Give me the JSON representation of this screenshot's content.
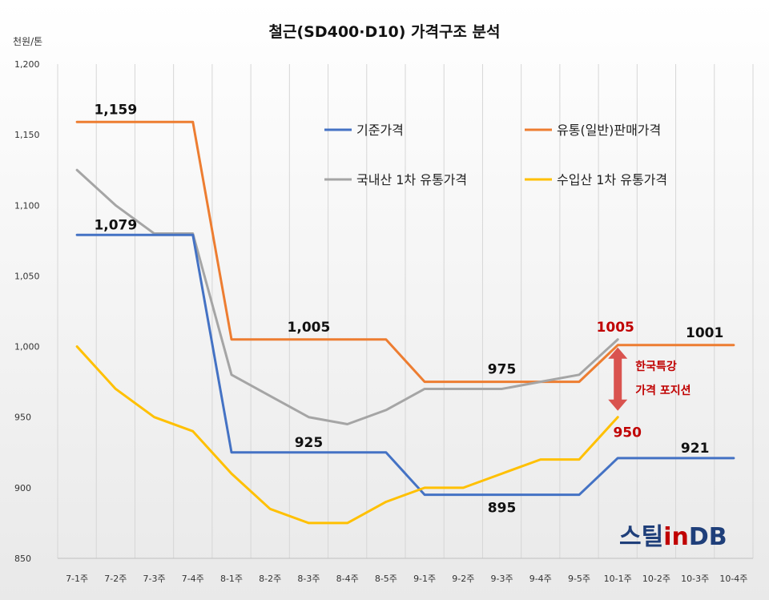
{
  "chart_data": {
    "type": "line",
    "title": "철근(SD400·D10) 가격구조 분석",
    "ylabel": "천원/톤",
    "ylim": [
      850,
      1200
    ],
    "yticks": [
      "850",
      "900",
      "950",
      "1,000",
      "1,050",
      "1,100",
      "1,150",
      "1,200"
    ],
    "yticks_values": [
      850,
      900,
      950,
      1000,
      1050,
      1100,
      1150,
      1200
    ],
    "grid": "vertical",
    "categories": [
      "7-1주",
      "7-2주",
      "7-3주",
      "7-4주",
      "8-1주",
      "8-2주",
      "8-3주",
      "8-4주",
      "8-5주",
      "9-1주",
      "9-2주",
      "9-3주",
      "9-4주",
      "9-5주",
      "10-1주",
      "10-2주",
      "10-3주",
      "10-4주"
    ],
    "series": [
      {
        "name": "유통(일반)판매가격",
        "color": "#ED7D31",
        "values": [
          1159,
          1159,
          1159,
          1159,
          1005,
          1005,
          1005,
          1005,
          1005,
          975,
          975,
          975,
          975,
          975,
          1001,
          1001,
          1001,
          1001
        ]
      },
      {
        "name": "국내산 1차 유통가격",
        "color": "#A5A5A5",
        "values": [
          1125,
          1100,
          1080,
          1080,
          980,
          965,
          950,
          945,
          955,
          970,
          970,
          970,
          975,
          980,
          1005,
          null,
          null,
          null
        ]
      },
      {
        "name": "기준가격",
        "color": "#4472C4",
        "values": [
          1079,
          1079,
          1079,
          1079,
          925,
          925,
          925,
          925,
          925,
          895,
          895,
          895,
          895,
          895,
          921,
          921,
          921,
          921
        ]
      },
      {
        "name": "수입산 1차 유통가격",
        "color": "#FFC000",
        "values": [
          1000,
          970,
          950,
          940,
          910,
          885,
          875,
          875,
          890,
          900,
          900,
          910,
          920,
          920,
          950,
          null,
          null,
          null
        ]
      }
    ],
    "legend": [
      {
        "label": "기준가격",
        "color": "#4472C4"
      },
      {
        "label": "유통(일반)판매가격",
        "color": "#ED7D31"
      },
      {
        "label": "국내산 1차 유통가격",
        "color": "#A5A5A5"
      },
      {
        "label": "수입산 1차 유통가격",
        "color": "#FFC000"
      }
    ],
    "legend_placement": "top-right",
    "data_labels": [
      {
        "text": "1,159",
        "x": "7-2주",
        "y": 1159,
        "color": "black"
      },
      {
        "text": "1,079",
        "x": "7-2주",
        "y": 1079,
        "color": "black"
      },
      {
        "text": "1,005",
        "x": "8-3주",
        "y": 1005,
        "color": "black"
      },
      {
        "text": "925",
        "x": "8-3주",
        "y": 925,
        "color": "black"
      },
      {
        "text": "975",
        "x": "9-3주",
        "y": 975,
        "color": "black"
      },
      {
        "text": "895",
        "x": "9-3주",
        "y": 895,
        "color": "black"
      },
      {
        "text": "1005",
        "x": "10-1주",
        "y": 1005,
        "color": "red"
      },
      {
        "text": "1001",
        "x": "10-3주",
        "y": 1001,
        "color": "black"
      },
      {
        "text": "950",
        "x": "10-1주",
        "y": 950,
        "color": "red"
      },
      {
        "text": "921",
        "x": "10-3주",
        "y": 921,
        "color": "black"
      }
    ],
    "annotation": {
      "lines": [
        "한국특강",
        "가격 포지션"
      ],
      "color": "#c00000",
      "arrow_from": 1005,
      "arrow_to": 950,
      "x": "10-1주"
    }
  },
  "logo": {
    "text": "스틸inDB",
    "alt": "steel in DB logo"
  }
}
